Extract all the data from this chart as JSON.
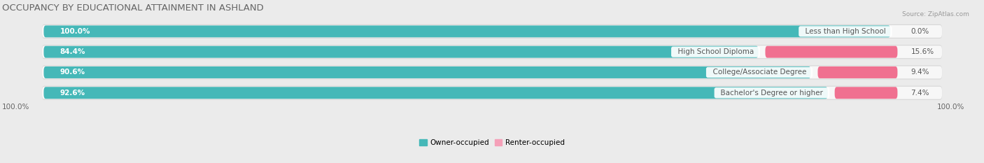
{
  "title": "OCCUPANCY BY EDUCATIONAL ATTAINMENT IN ASHLAND",
  "source": "Source: ZipAtlas.com",
  "categories": [
    "Less than High School",
    "High School Diploma",
    "College/Associate Degree",
    "Bachelor's Degree or higher"
  ],
  "owner_pct": [
    100.0,
    84.4,
    90.6,
    92.6
  ],
  "renter_pct": [
    0.0,
    15.6,
    9.4,
    7.4
  ],
  "owner_color": "#45b8b8",
  "renter_color": "#f07090",
  "renter_color_soft": "#f5a0b8",
  "bg_color": "#ebebeb",
  "bar_bg_color": "#f7f7f7",
  "bar_bg_shadow": "#d8d8d8",
  "title_fontsize": 9.5,
  "label_fontsize": 7.5,
  "tick_fontsize": 7.5,
  "bar_height": 0.58,
  "left_axis_label": "100.0%",
  "right_axis_label": "100.0%",
  "legend_labels": [
    "Owner-occupied",
    "Renter-occupied"
  ]
}
